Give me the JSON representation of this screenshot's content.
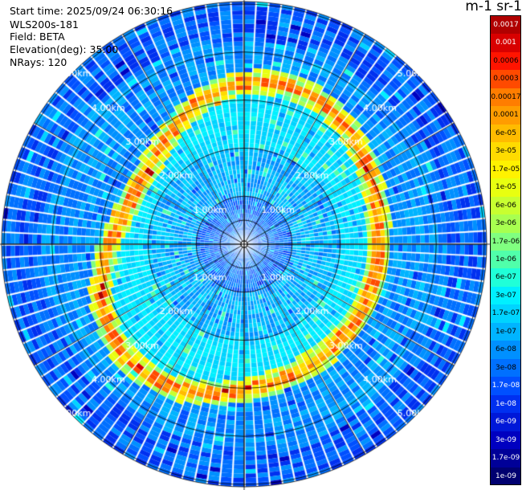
{
  "header": {
    "start_time": "Start time: 2025/09/24 06:30:16",
    "device": "WLS200s-181",
    "field": "Field: BETA",
    "elevation": "Elevation(deg): 35.00",
    "nrays": "NRays: 120"
  },
  "chart_data": {
    "type": "heatmap",
    "subtype": "polar-ppi",
    "title": "",
    "colorbar_title": "m-1 sr-1",
    "range_labels": [
      "1.00km",
      "2.00km",
      "3.00km",
      "4.00km",
      "5.00km"
    ],
    "range_rings_km": [
      1,
      2,
      3,
      4,
      5
    ],
    "max_range_km": 5.05,
    "n_rays": 120,
    "radial_gates": 55,
    "colorbar_levels": [
      "0.0017",
      "0.001",
      "0.0006",
      "0.0003",
      "0.00017",
      "0.0001",
      "6e-05",
      "3e-05",
      "1.7e-05",
      "1e-05",
      "6e-06",
      "3e-06",
      "1.7e-06",
      "1e-06",
      "6e-07",
      "3e-07",
      "1.7e-07",
      "1e-07",
      "6e-08",
      "3e-08",
      "1.7e-08",
      "1e-08",
      "6e-09",
      "3e-09",
      "1.7e-09",
      "1e-09"
    ],
    "colorbar_colors": [
      "#b00000",
      "#d80000",
      "#ff1400",
      "#ff4a00",
      "#ff7d00",
      "#ff9c00",
      "#ffbb00",
      "#ffdb00",
      "#fff200",
      "#e8ff10",
      "#c8ff30",
      "#a8ff50",
      "#80ff80",
      "#50ffaa",
      "#20ffd8",
      "#00f0ff",
      "#00d4ff",
      "#00b4ff",
      "#0090ff",
      "#0070ff",
      "#0050ff",
      "#0030f0",
      "#0018d8",
      "#0000c0",
      "#000098",
      "#000070"
    ],
    "features": {
      "high_backscatter_ring_km": 3.0,
      "near_field_level": "1e-07 to 1e-06",
      "far_field_level": "1e-08 to 3e-08"
    }
  }
}
